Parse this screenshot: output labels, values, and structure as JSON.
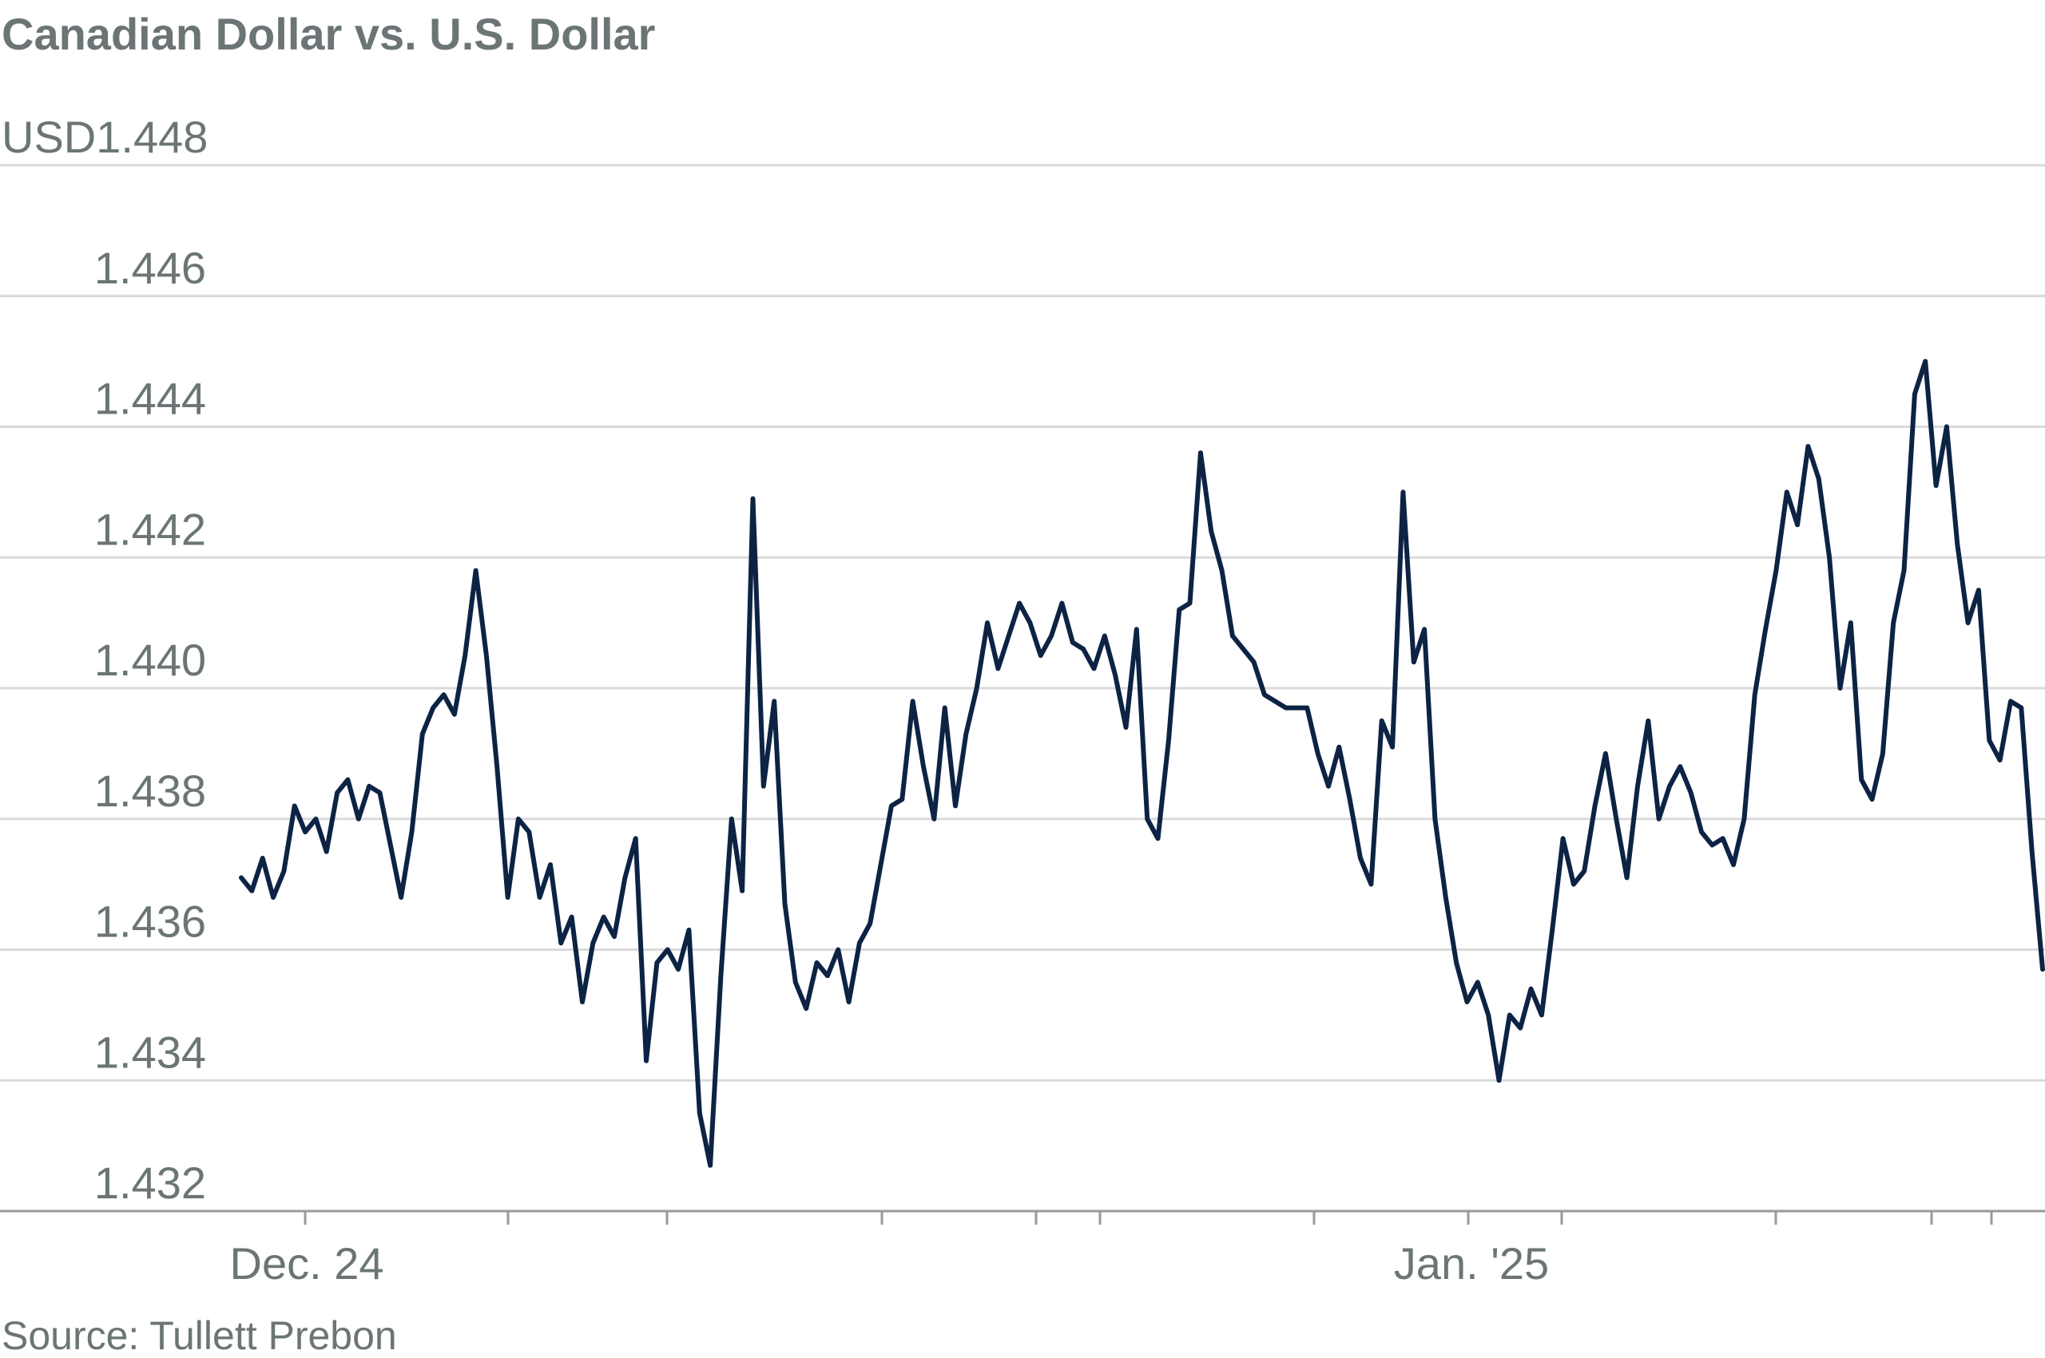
{
  "chart_data": {
    "type": "line",
    "title": "Canadian Dollar vs. U.S. Dollar",
    "y_unit_prefix": "USD",
    "ylim": [
      1.432,
      1.448
    ],
    "y_ticks": [
      "1.448",
      "1.446",
      "1.444",
      "1.442",
      "1.440",
      "1.438",
      "1.436",
      "1.434",
      "1.432"
    ],
    "x_ticks": [
      "Dec. 24",
      "Jan. '25"
    ],
    "source": "Source: Tullett Prebon",
    "grid": true,
    "legend": "none",
    "line_color": "#0d2344",
    "series": [
      {
        "values": [
          1.4371,
          1.4369,
          1.4374,
          1.4368,
          1.4372,
          1.4382,
          1.4378,
          1.438,
          1.4375,
          1.4384,
          1.4386,
          1.438,
          1.4385,
          1.4384,
          1.4376,
          1.4368,
          1.4378,
          1.4393,
          1.4397,
          1.4399,
          1.4396,
          1.4405,
          1.4418,
          1.4405,
          1.4388,
          1.4368,
          1.438,
          1.4378,
          1.4368,
          1.4373,
          1.4361,
          1.4365,
          1.4352,
          1.4361,
          1.4365,
          1.4362,
          1.4371,
          1.4377,
          1.4343,
          1.4358,
          1.436,
          1.4357,
          1.4363,
          1.4335,
          1.4327,
          1.4356,
          1.438,
          1.4369,
          1.4429,
          1.4385,
          1.4398,
          1.4367,
          1.4355,
          1.4351,
          1.4358,
          1.4356,
          1.436,
          1.4352,
          1.4361,
          1.4364,
          1.4373,
          1.4382,
          1.4383,
          1.4398,
          1.4388,
          1.438,
          1.4397,
          1.4382,
          1.4393,
          1.44,
          1.441,
          1.4403,
          1.4408,
          1.4413,
          1.441,
          1.4405,
          1.4408,
          1.4413,
          1.4407,
          1.4406,
          1.4403,
          1.4408,
          1.4402,
          1.4394,
          1.4409,
          1.438,
          1.4377,
          1.4392,
          1.4412,
          1.4413,
          1.4436,
          1.4424,
          1.4418,
          1.4408,
          1.4406,
          1.4404,
          1.4399,
          1.4398,
          1.4397,
          1.4397,
          1.4397,
          1.439,
          1.4385,
          1.4391,
          1.4383,
          1.4374,
          1.437,
          1.4395,
          1.4391,
          1.443,
          1.4404,
          1.4409,
          1.438,
          1.4368,
          1.4358,
          1.4352,
          1.4355,
          1.435,
          1.434,
          1.435,
          1.4348,
          1.4354,
          1.435,
          1.4363,
          1.4377,
          1.437,
          1.4372,
          1.4382,
          1.439,
          1.438,
          1.4371,
          1.4385,
          1.4395,
          1.438,
          1.4385,
          1.4388,
          1.4384,
          1.4378,
          1.4376,
          1.4377,
          1.4373,
          1.438,
          1.4399,
          1.4409,
          1.4418,
          1.443,
          1.4425,
          1.4437,
          1.4432,
          1.442,
          1.44,
          1.441,
          1.4386,
          1.4383,
          1.439,
          1.441,
          1.4418,
          1.4445,
          1.445,
          1.4431,
          1.444,
          1.4422,
          1.441,
          1.4415,
          1.4392,
          1.4389,
          1.4398,
          1.4397,
          1.4375,
          1.4357
        ]
      }
    ]
  }
}
